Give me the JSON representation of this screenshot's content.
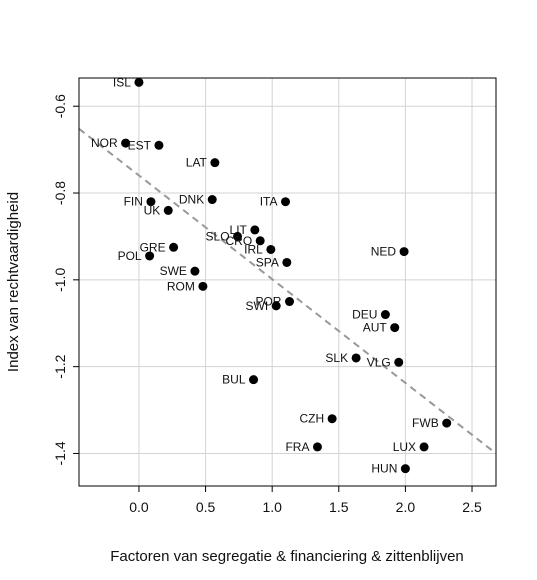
{
  "chart_data": {
    "type": "scatter",
    "title": "",
    "xlabel": "Factoren van segregatie & financiering & zittenblijven",
    "ylabel": "Index van rechtvaardigheid",
    "xlim": [
      -0.45,
      2.68
    ],
    "ylim": [
      -1.475,
      -0.535
    ],
    "x_ticks": [
      0.0,
      0.5,
      1.0,
      1.5,
      2.0,
      2.5
    ],
    "x_tick_labels": [
      "0.0",
      "0.5",
      "1.0",
      "1.5",
      "2.0",
      "2.5"
    ],
    "y_ticks": [
      -0.6,
      -0.8,
      -1.0,
      -1.2,
      -1.4
    ],
    "y_tick_labels": [
      "-0.6",
      "-0.8",
      "-1.0",
      "-1.2",
      "-1.4"
    ],
    "grid": true,
    "legend": "none",
    "colors": {
      "points": "#000000",
      "trendline": "#999999",
      "grid": "#d3d3d3",
      "frame": "#000000"
    },
    "points": [
      {
        "label": "ISL",
        "x": 0.0,
        "y": -0.545
      },
      {
        "label": "NOR",
        "x": -0.1,
        "y": -0.685
      },
      {
        "label": "EST",
        "x": 0.15,
        "y": -0.69
      },
      {
        "label": "LAT",
        "x": 0.57,
        "y": -0.73
      },
      {
        "label": "FIN",
        "x": 0.09,
        "y": -0.82
      },
      {
        "label": "UK",
        "x": 0.22,
        "y": -0.84
      },
      {
        "label": "DNK",
        "x": 0.55,
        "y": -0.815
      },
      {
        "label": "ITA",
        "x": 1.1,
        "y": -0.82
      },
      {
        "label": "LIT",
        "x": 0.87,
        "y": -0.885
      },
      {
        "label": "SLO",
        "x": 0.74,
        "y": -0.9
      },
      {
        "label": "CRO",
        "x": 0.91,
        "y": -0.91
      },
      {
        "label": "IRL",
        "x": 0.99,
        "y": -0.93
      },
      {
        "label": "SPA",
        "x": 1.11,
        "y": -0.96
      },
      {
        "label": "GRE",
        "x": 0.26,
        "y": -0.925
      },
      {
        "label": "POL",
        "x": 0.08,
        "y": -0.945
      },
      {
        "label": "SWE",
        "x": 0.42,
        "y": -0.98
      },
      {
        "label": "ROM",
        "x": 0.48,
        "y": -1.015
      },
      {
        "label": "POR",
        "x": 1.13,
        "y": -1.05
      },
      {
        "label": "SWI",
        "x": 1.03,
        "y": -1.06
      },
      {
        "label": "NED",
        "x": 1.99,
        "y": -0.935
      },
      {
        "label": "DEU",
        "x": 1.85,
        "y": -1.08
      },
      {
        "label": "AUT",
        "x": 1.92,
        "y": -1.11
      },
      {
        "label": "SLK",
        "x": 1.63,
        "y": -1.18
      },
      {
        "label": "VLG",
        "x": 1.95,
        "y": -1.19
      },
      {
        "label": "BUL",
        "x": 0.86,
        "y": -1.23
      },
      {
        "label": "CZH",
        "x": 1.45,
        "y": -1.32
      },
      {
        "label": "FWB",
        "x": 2.31,
        "y": -1.33
      },
      {
        "label": "FRA",
        "x": 1.34,
        "y": -1.385
      },
      {
        "label": "LUX",
        "x": 2.14,
        "y": -1.385
      },
      {
        "label": "HUN",
        "x": 2.0,
        "y": -1.435
      }
    ],
    "trendline": {
      "x": [
        -0.45,
        2.68
      ],
      "y": [
        -0.652,
        -1.4
      ]
    }
  }
}
